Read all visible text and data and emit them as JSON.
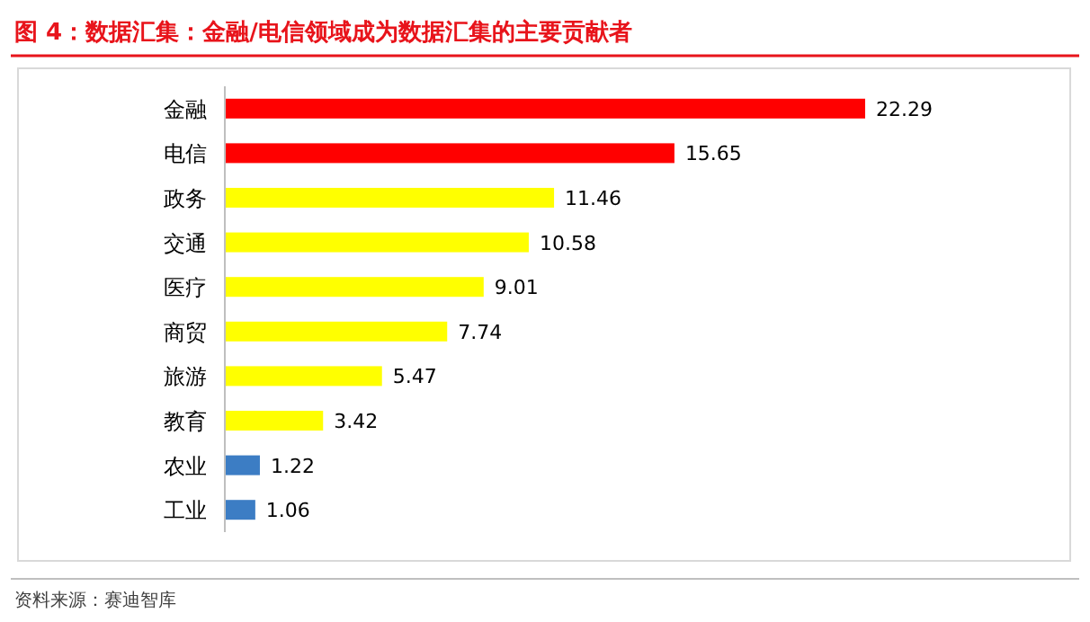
{
  "chart_data": {
    "type": "bar",
    "orientation": "horizontal",
    "title": "图 4：数据汇集：金融/电信领域成为数据汇集的主要贡献者",
    "categories": [
      "金融",
      "电信",
      "政务",
      "交通",
      "医疗",
      "商贸",
      "旅游",
      "教育",
      "农业",
      "工业"
    ],
    "values": [
      22.29,
      15.65,
      11.46,
      10.58,
      9.01,
      7.74,
      5.47,
      3.42,
      1.22,
      1.06
    ],
    "colors": [
      "#ff0000",
      "#ff0000",
      "#ffff00",
      "#ffff00",
      "#ffff00",
      "#ffff00",
      "#ffff00",
      "#ffff00",
      "#3c7dc4",
      "#3c7dc4"
    ],
    "data_labels": true,
    "annotations": [
      "资料来源：赛迪智库"
    ]
  }
}
